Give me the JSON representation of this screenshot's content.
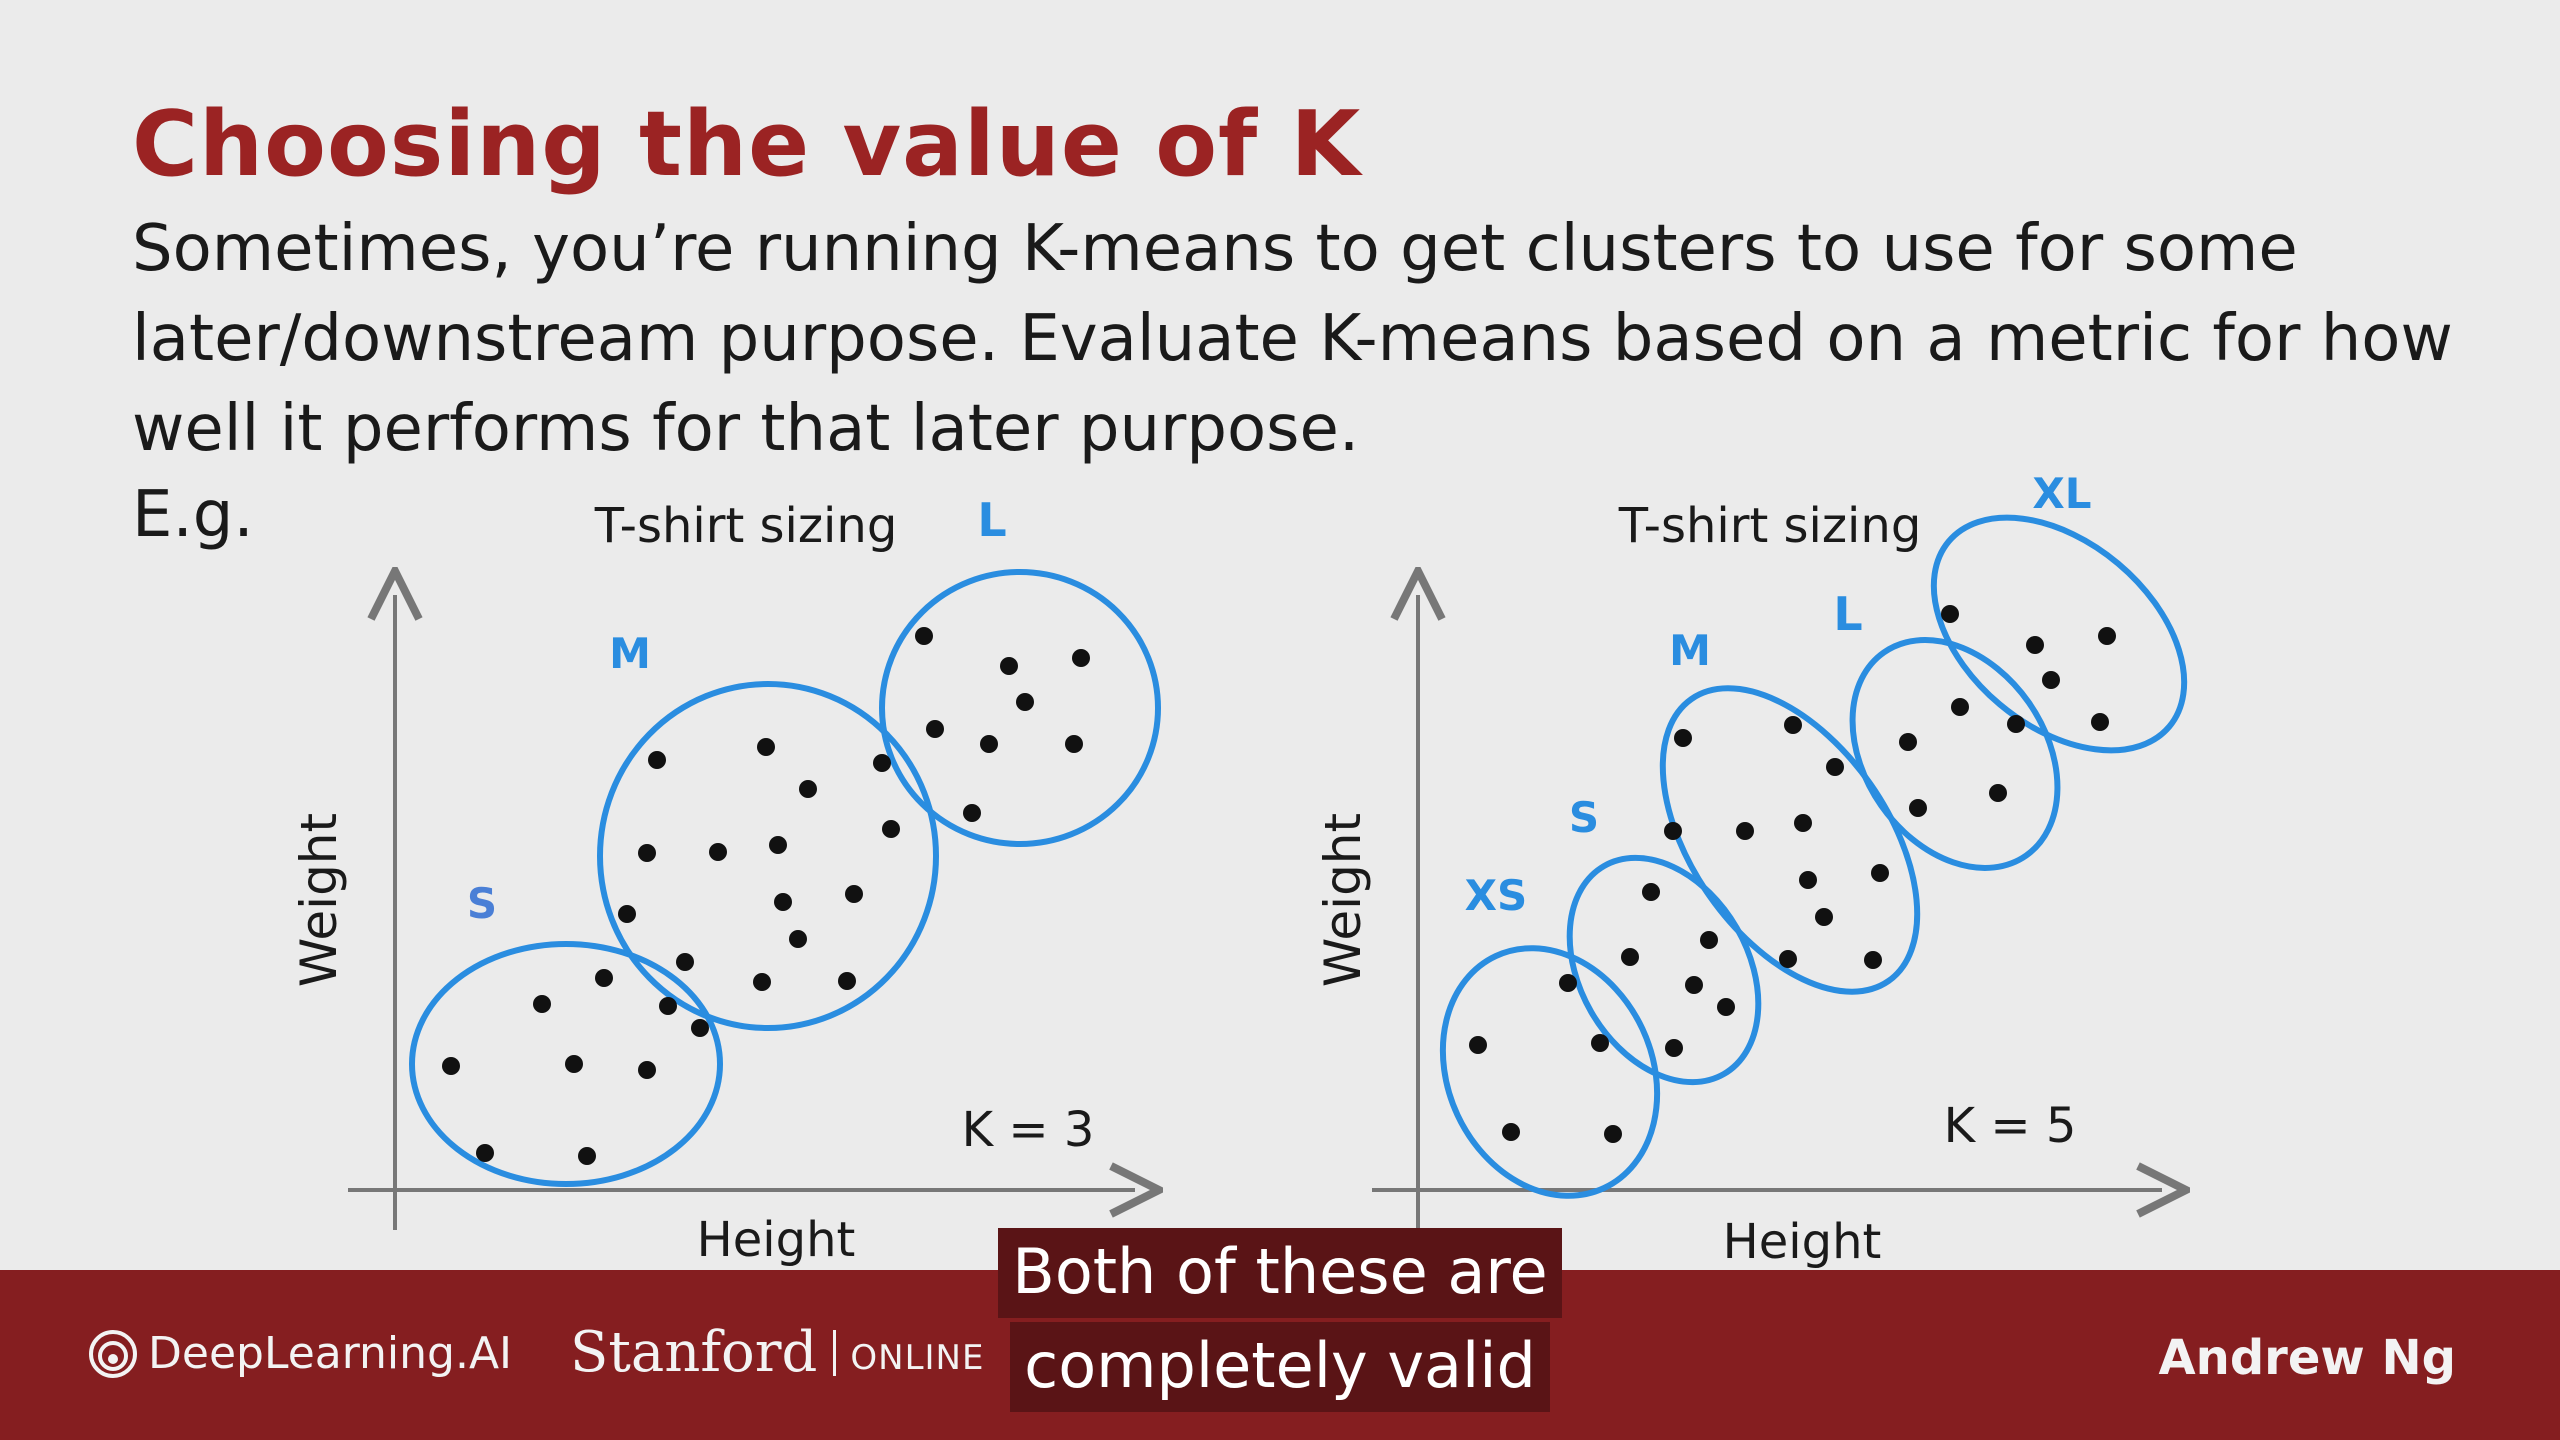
{
  "slide": {
    "title": "Choosing the value of K",
    "body_lines": [
      "Sometimes, you’re running K-means to get clusters to use for some",
      "later/downstream purpose. Evaluate K-means based on a metric for how",
      "well it performs for that later purpose."
    ],
    "example_label": "E.g."
  },
  "left_plot": {
    "title": "T-shirt sizing",
    "xlabel": "Height",
    "ylabel": "Weight",
    "k_label": "K = 3",
    "cluster_labels": [
      "S",
      "M",
      "L"
    ]
  },
  "right_plot": {
    "title": "T-shirt sizing",
    "xlabel": "Height",
    "ylabel": "Weight",
    "k_label": "K = 5",
    "cluster_labels": [
      "XS",
      "S",
      "M",
      "L",
      "XL"
    ]
  },
  "footer": {
    "logo_text": "DeepLearning.AI",
    "stanford_name": "Stanford",
    "stanford_online": "ONLINE",
    "author": "Andrew Ng"
  },
  "caption": {
    "lines": [
      "Both of these are",
      "completely valid"
    ]
  },
  "colors": {
    "title": "#9b2323",
    "cluster_outline": "#2a8de0",
    "footer_bg": "#851e20"
  }
}
